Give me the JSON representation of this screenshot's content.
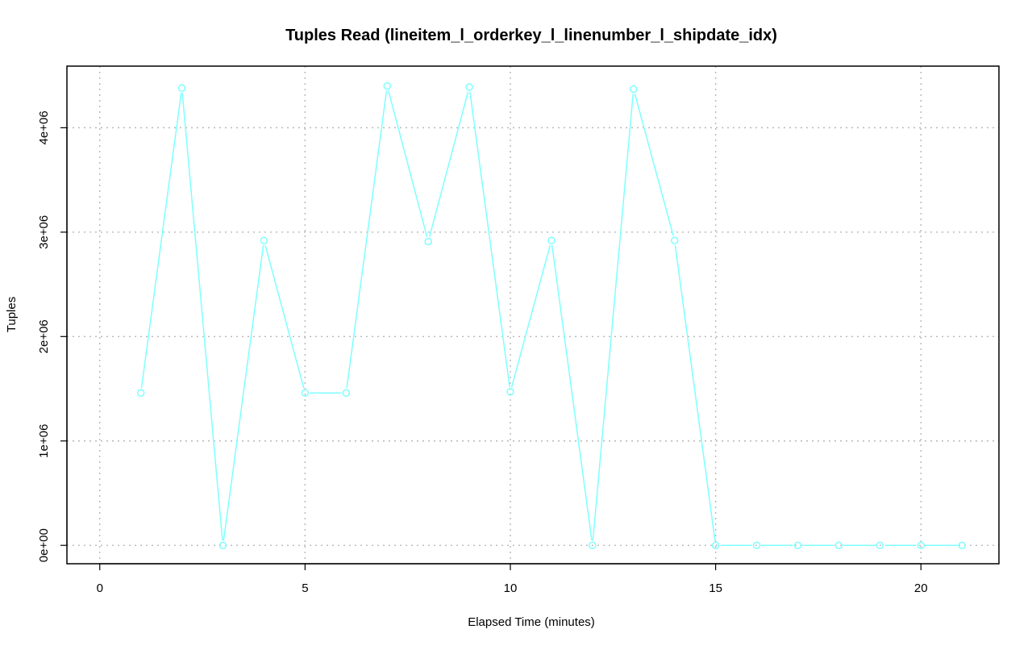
{
  "chart_data": {
    "type": "line",
    "title": "Tuples Read (lineitem_l_orderkey_l_linenumber_l_shipdate_idx)",
    "xlabel": "Elapsed Time (minutes)",
    "ylabel": "Tuples",
    "xlim": [
      -0.8,
      21.9
    ],
    "ylim": [
      -176000,
      4590000
    ],
    "x_ticks": [
      0,
      5,
      10,
      15,
      20
    ],
    "x_tick_labels": [
      "0",
      "5",
      "10",
      "15",
      "20"
    ],
    "y_ticks": [
      0,
      1000000,
      2000000,
      3000000,
      4000000
    ],
    "y_tick_labels": [
      "0e+00",
      "1e+06",
      "2e+06",
      "3e+06",
      "4e+06"
    ],
    "grid": true,
    "series": [
      {
        "color": "#7fffff",
        "marker": "circle-open",
        "x": [
          1,
          2,
          3,
          4,
          5,
          6,
          7,
          8,
          9,
          10,
          11,
          12,
          13,
          14,
          15,
          16,
          17,
          18,
          19,
          20,
          21
        ],
        "y": [
          1460000,
          4380000,
          0,
          2920000,
          1460000,
          1460000,
          4400000,
          2910000,
          4390000,
          1470000,
          2920000,
          0,
          4370000,
          2920000,
          0,
          0,
          0,
          0,
          0,
          0,
          0
        ]
      }
    ]
  }
}
